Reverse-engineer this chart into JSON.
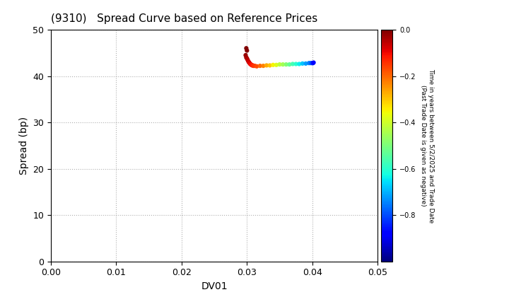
{
  "title": "(9310)   Spread Curve based on Reference Prices",
  "xlabel": "DV01",
  "ylabel": "Spread (bp)",
  "xlim": [
    0.0,
    0.05
  ],
  "ylim": [
    0,
    50
  ],
  "xticks": [
    0.0,
    0.01,
    0.02,
    0.03,
    0.04,
    0.05
  ],
  "yticks": [
    0,
    10,
    20,
    30,
    40,
    50
  ],
  "colorbar_label_line1": "Time in years between 5/2/2025 and Trade Date",
  "colorbar_label_line2": "(Past Trade Date is given as negative)",
  "colorbar_vmin": -1.0,
  "colorbar_vmax": 0.0,
  "colorbar_ticks": [
    0.0,
    -0.2,
    -0.4,
    -0.6,
    -0.8
  ],
  "cmap": "jet",
  "background_color": "#ffffff",
  "grid_color": "#b0b0b0",
  "points": {
    "dv01": [
      0.0298,
      0.0299,
      0.03,
      0.0301,
      0.0302,
      0.0303,
      0.0304,
      0.0305,
      0.0306,
      0.0307,
      0.0308,
      0.0309,
      0.031,
      0.0312,
      0.0315,
      0.032,
      0.0325,
      0.033,
      0.0335,
      0.034,
      0.0345,
      0.035,
      0.0355,
      0.036,
      0.0365,
      0.037,
      0.0375,
      0.038,
      0.0385,
      0.039,
      0.0395,
      0.0398,
      0.04,
      0.0401,
      0.0402,
      0.03,
      0.0299
    ],
    "spread": [
      44.5,
      44.0,
      43.8,
      43.5,
      43.2,
      43.0,
      42.8,
      42.6,
      42.5,
      42.4,
      42.3,
      42.3,
      42.2,
      42.2,
      42.1,
      42.2,
      42.2,
      42.3,
      42.3,
      42.4,
      42.4,
      42.5,
      42.5,
      42.5,
      42.5,
      42.6,
      42.6,
      42.6,
      42.7,
      42.7,
      42.8,
      42.8,
      42.8,
      42.8,
      42.9,
      45.5,
      46.0
    ],
    "color_val": [
      -0.02,
      -0.03,
      -0.04,
      -0.05,
      -0.06,
      -0.07,
      -0.08,
      -0.09,
      -0.1,
      -0.11,
      -0.12,
      -0.13,
      -0.14,
      -0.15,
      -0.17,
      -0.2,
      -0.23,
      -0.27,
      -0.3,
      -0.35,
      -0.38,
      -0.42,
      -0.45,
      -0.49,
      -0.53,
      -0.57,
      -0.6,
      -0.64,
      -0.68,
      -0.72,
      -0.75,
      -0.78,
      -0.82,
      -0.85,
      -0.88,
      -0.005,
      -0.001
    ]
  }
}
